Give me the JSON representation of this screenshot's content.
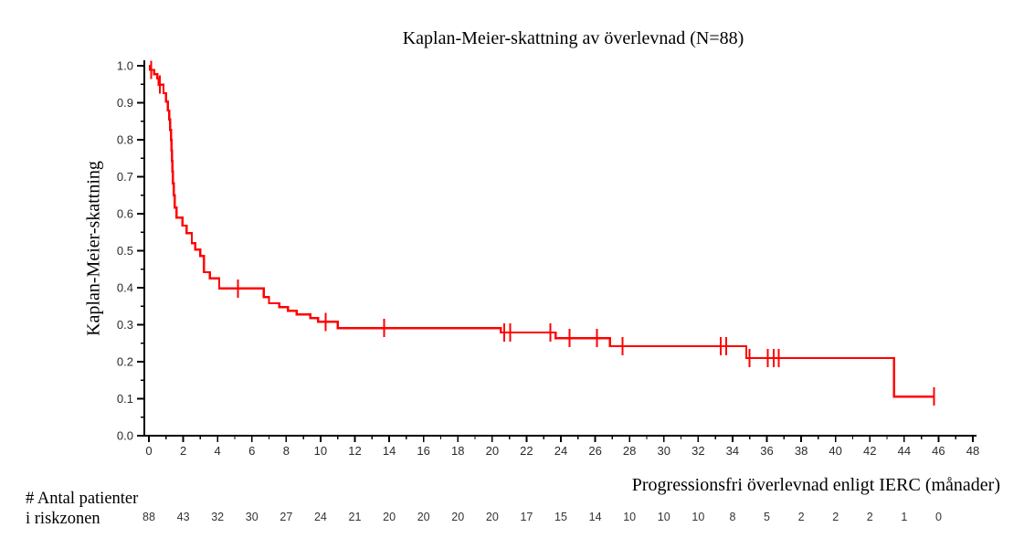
{
  "title": "Kaplan-Meier-skattning av överlevnad (N=88)",
  "colors": {
    "curve": "#ff0000",
    "axis": "#000000",
    "tick_text": "#2b2b2b",
    "risk_text": "#333333",
    "background": "#ffffff"
  },
  "risk_table": {
    "label_line1": "# Antal patienter",
    "label_line2": "i riskzonen",
    "months": [
      0,
      2,
      4,
      6,
      8,
      10,
      12,
      14,
      16,
      18,
      20,
      22,
      24,
      26,
      28,
      30,
      32,
      34,
      36,
      38,
      40,
      42,
      44,
      46
    ],
    "counts": [
      88,
      43,
      32,
      30,
      27,
      24,
      21,
      20,
      20,
      20,
      20,
      17,
      15,
      14,
      10,
      10,
      10,
      8,
      5,
      2,
      2,
      2,
      1,
      0
    ]
  },
  "chart_data": {
    "type": "line",
    "subtype": "kaplan-meier-step",
    "title": "Kaplan-Meier-skattning av överlevnad (N=88)",
    "xlabel": "Progressionsfri överlevnad enligt IERC (månader)",
    "ylabel": "Kaplan-Meier-skattning",
    "xlim": [
      0,
      48
    ],
    "ylim": [
      0.0,
      1.0
    ],
    "grid": false,
    "legend": "none",
    "xticks": [
      0,
      2,
      4,
      6,
      8,
      10,
      12,
      14,
      16,
      18,
      20,
      22,
      24,
      26,
      28,
      30,
      32,
      34,
      36,
      38,
      40,
      42,
      44,
      46,
      48
    ],
    "xtick_minor_step": 1,
    "yticks": [
      "1.0",
      "0.9",
      "0.8",
      "0.7",
      "0.6",
      "0.5",
      "0.4",
      "0.3",
      "0.2",
      "0.1",
      "0.0"
    ],
    "ytick_minor_step": 0.05,
    "series": [
      {
        "name": "Progressionsfri överlevnad enligt IERC",
        "n": 88,
        "color": "#ff0000",
        "steps": [
          [
            0.0,
            1.0
          ],
          [
            0.07,
            0.989
          ],
          [
            0.3,
            0.977
          ],
          [
            0.49,
            0.966
          ],
          [
            0.58,
            0.949
          ],
          [
            0.85,
            0.926
          ],
          [
            1.0,
            0.903
          ],
          [
            1.1,
            0.879
          ],
          [
            1.18,
            0.855
          ],
          [
            1.24,
            0.827
          ],
          [
            1.28,
            0.799
          ],
          [
            1.31,
            0.771
          ],
          [
            1.34,
            0.743
          ],
          [
            1.37,
            0.714
          ],
          [
            1.4,
            0.682
          ],
          [
            1.44,
            0.65
          ],
          [
            1.5,
            0.617
          ],
          [
            1.62,
            0.59
          ],
          [
            1.95,
            0.568
          ],
          [
            2.2,
            0.548
          ],
          [
            2.5,
            0.52
          ],
          [
            2.7,
            0.503
          ],
          [
            3.0,
            0.486
          ],
          [
            3.2,
            0.442
          ],
          [
            3.55,
            0.425
          ],
          [
            4.1,
            0.398
          ],
          [
            6.7,
            0.375
          ],
          [
            7.0,
            0.358
          ],
          [
            7.6,
            0.348
          ],
          [
            8.1,
            0.338
          ],
          [
            8.6,
            0.328
          ],
          [
            9.4,
            0.318
          ],
          [
            9.85,
            0.308
          ],
          [
            11.0,
            0.291
          ],
          [
            20.5,
            0.279
          ],
          [
            23.7,
            0.264
          ],
          [
            26.85,
            0.242
          ],
          [
            34.8,
            0.21
          ],
          [
            43.4,
            0.106
          ]
        ],
        "end_x": 45.75,
        "censors": [
          [
            0.12,
            0.989
          ],
          [
            0.63,
            0.949
          ],
          [
            5.2,
            0.398
          ],
          [
            10.3,
            0.308
          ],
          [
            13.7,
            0.291
          ],
          [
            20.7,
            0.279
          ],
          [
            21.05,
            0.279
          ],
          [
            23.4,
            0.279
          ],
          [
            24.5,
            0.264
          ],
          [
            26.1,
            0.264
          ],
          [
            27.6,
            0.242
          ],
          [
            33.3,
            0.242
          ],
          [
            33.62,
            0.242
          ],
          [
            35.0,
            0.21
          ],
          [
            36.05,
            0.21
          ],
          [
            36.4,
            0.21
          ],
          [
            36.7,
            0.21
          ],
          [
            45.75,
            0.106
          ]
        ]
      }
    ]
  }
}
